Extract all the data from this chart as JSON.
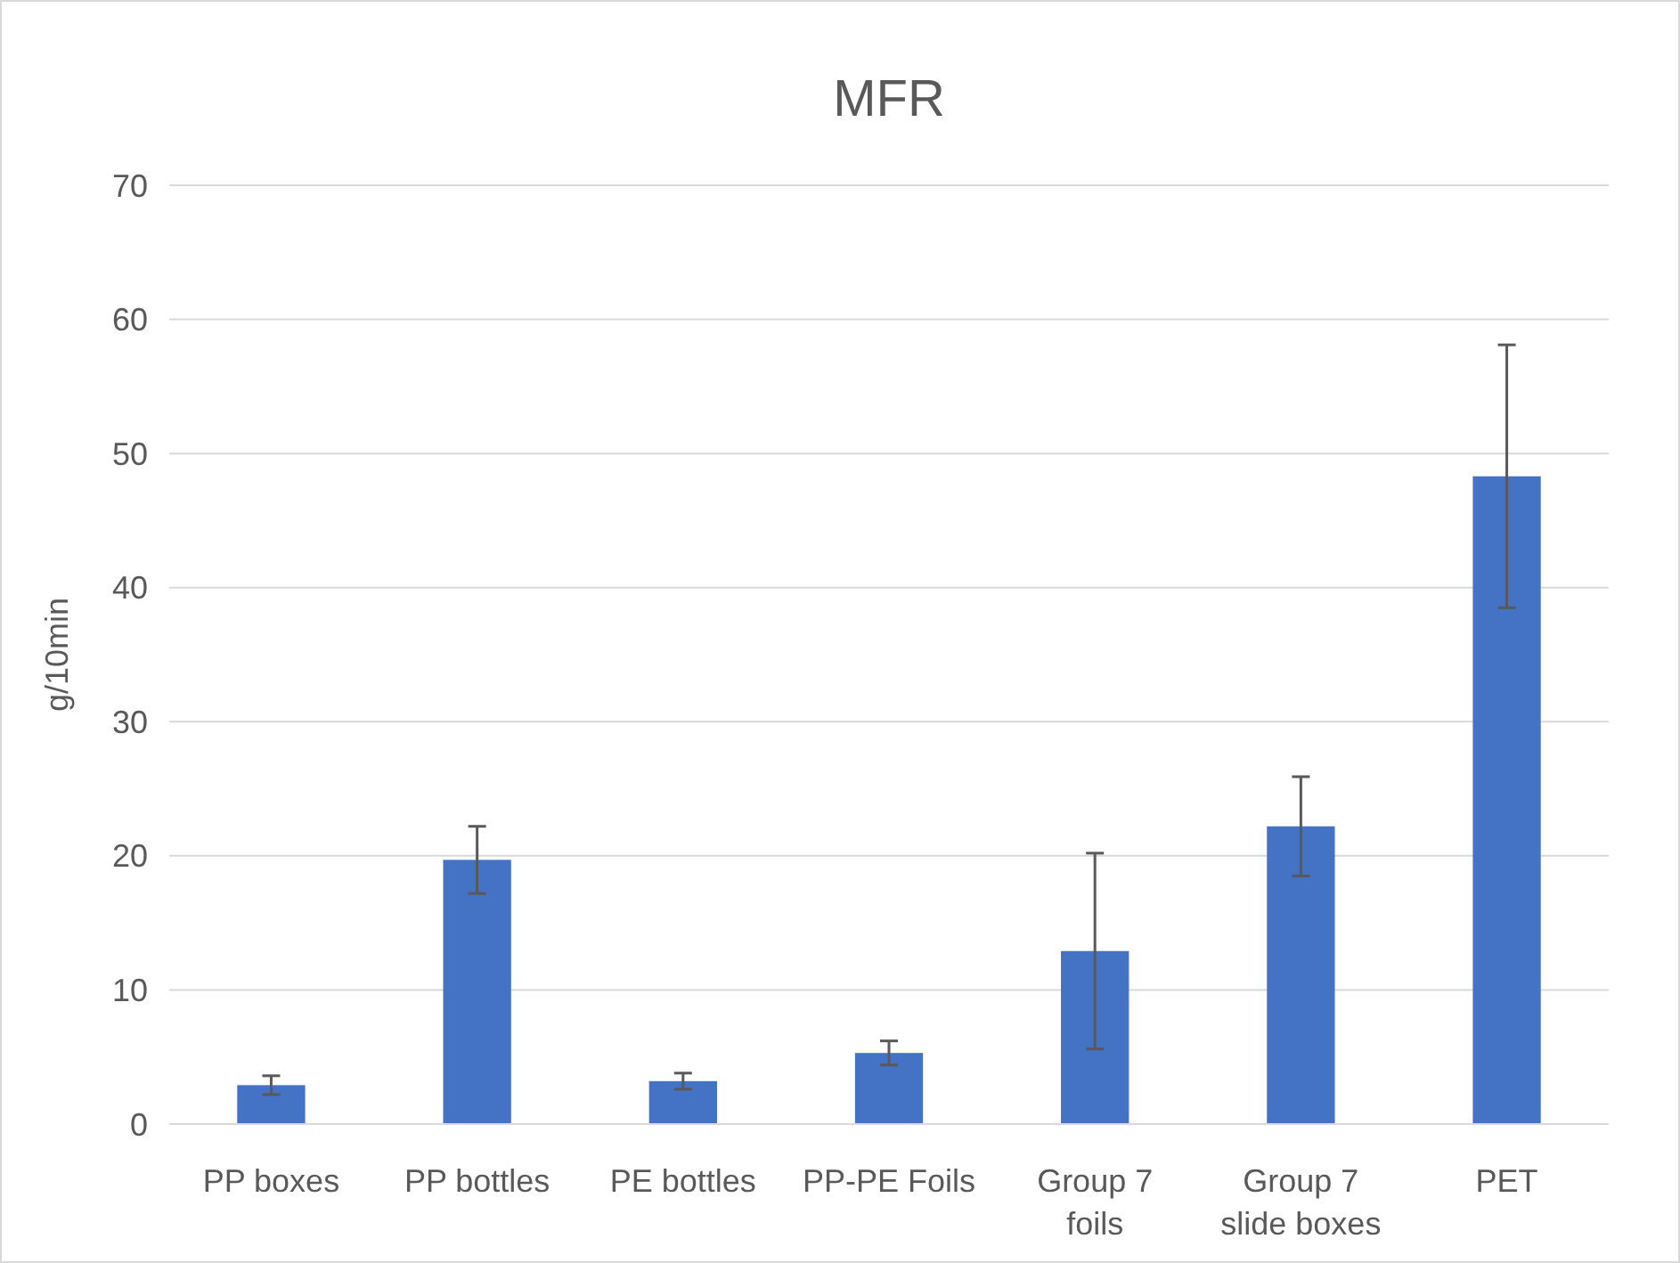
{
  "chart_data": {
    "type": "bar",
    "title": "MFR",
    "ylabel": "g/10min",
    "categories": [
      "PP boxes",
      "PP bottles",
      "PE bottles",
      "PP-PE Foils",
      "Group 7 foils",
      "Group 7 slide boxes",
      "PET"
    ],
    "values": [
      2.9,
      19.7,
      3.2,
      5.3,
      12.9,
      22.2,
      48.3
    ],
    "errors": [
      0.7,
      2.5,
      0.6,
      0.9,
      7.3,
      3.7,
      9.8
    ],
    "color": "#4472c4",
    "ylim": [
      0,
      70
    ],
    "yticks": [
      0,
      10,
      20,
      30,
      40,
      50,
      60,
      70
    ],
    "grid": "y"
  }
}
